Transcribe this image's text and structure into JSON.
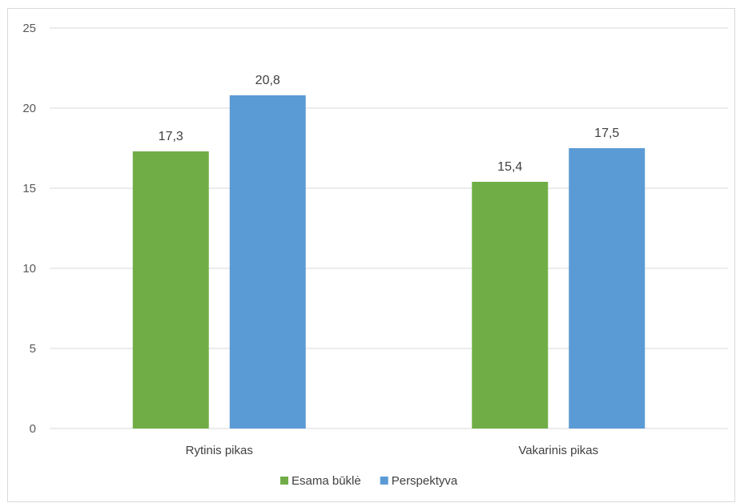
{
  "chart_data": {
    "type": "bar",
    "categories": [
      "Rytinis pikas",
      "Vakarinis pikas"
    ],
    "series": [
      {
        "name": "Esama būklė",
        "values": [
          17.3,
          15.4
        ],
        "labels": [
          "17,3",
          "15,4"
        ],
        "color": "#70ad47"
      },
      {
        "name": "Perspektyva",
        "values": [
          20.8,
          17.5
        ],
        "labels": [
          "20,8",
          "17,5"
        ],
        "color": "#5b9bd5"
      }
    ],
    "ylim": [
      0,
      25
    ],
    "yticks": [
      0,
      5,
      10,
      15,
      20,
      25
    ],
    "grid": true,
    "legend_position": "bottom",
    "title": "",
    "xlabel": "",
    "ylabel": ""
  }
}
